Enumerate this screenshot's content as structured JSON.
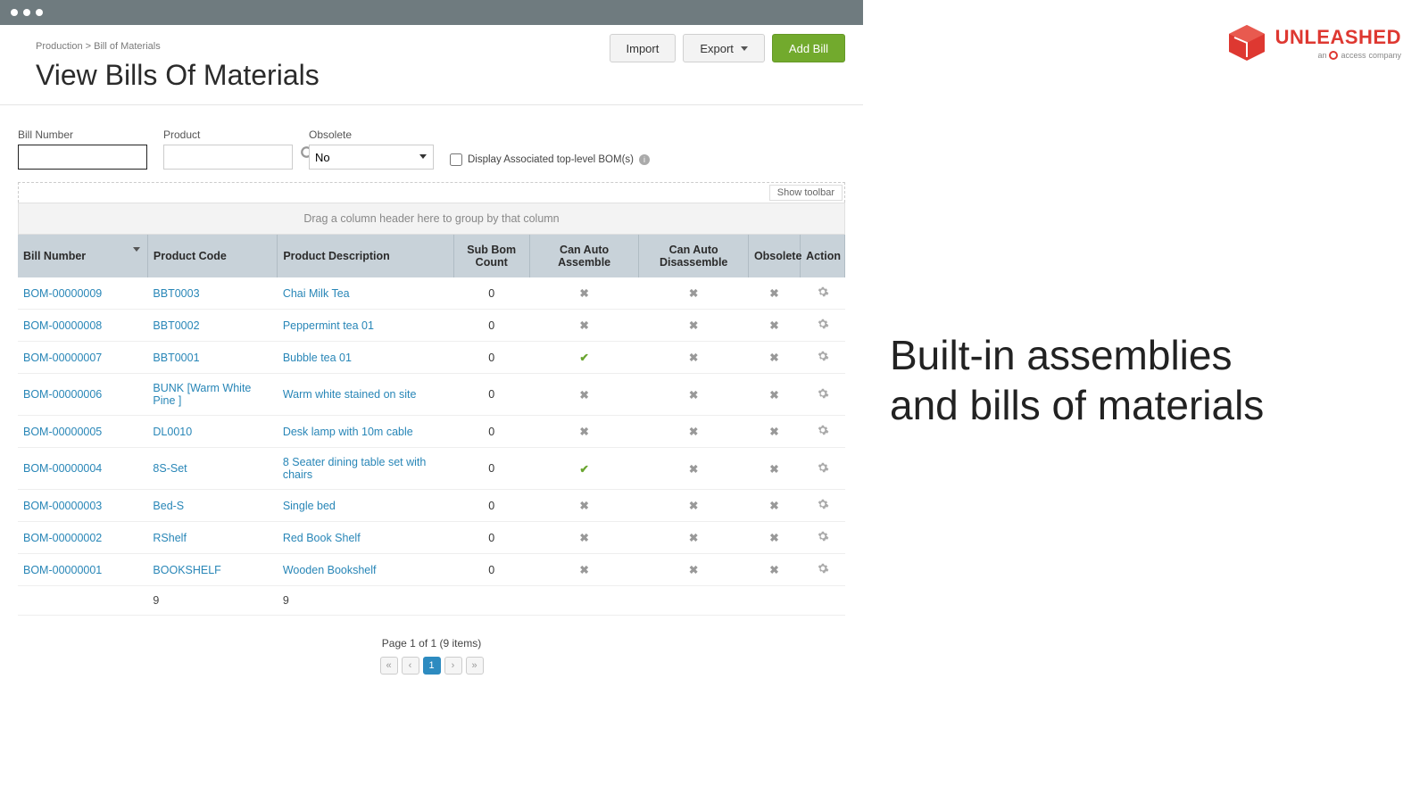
{
  "breadcrumb": "Production > Bill of Materials",
  "page_title": "View Bills Of Materials",
  "buttons": {
    "import": "Import",
    "export": "Export",
    "add": "Add Bill"
  },
  "filters": {
    "bill_number_label": "Bill Number",
    "product_label": "Product",
    "obsolete_label": "Obsolete",
    "obsolete_value": "No",
    "display_assoc_label": "Display Associated top-level BOM(s)"
  },
  "toolbar": {
    "show": "Show toolbar"
  },
  "group_hint": "Drag a column header here to group by that column",
  "columns": {
    "bill": "Bill Number",
    "code": "Product Code",
    "desc": "Product Description",
    "sub": "Sub Bom Count",
    "assemble": "Can Auto Assemble",
    "disassemble": "Can Auto Disassemble",
    "obsolete": "Obsolete",
    "action": "Action"
  },
  "col_widths": {
    "bill": 140,
    "code": 140,
    "desc": 190,
    "sub": 82,
    "assemble": 118,
    "disassemble": 118,
    "obsolete": 56,
    "action": 48
  },
  "rows": [
    {
      "bill": "BOM-00000009",
      "code": "BBT0003",
      "desc": "Chai Milk Tea",
      "sub": "0",
      "assemble": false,
      "disassemble": false,
      "obsolete": false
    },
    {
      "bill": "BOM-00000008",
      "code": "BBT0002",
      "desc": "Peppermint tea 01",
      "sub": "0",
      "assemble": false,
      "disassemble": false,
      "obsolete": false
    },
    {
      "bill": "BOM-00000007",
      "code": "BBT0001",
      "desc": "Bubble tea 01",
      "sub": "0",
      "assemble": true,
      "disassemble": false,
      "obsolete": false
    },
    {
      "bill": "BOM-00000006",
      "code": "BUNK [Warm White Pine ]",
      "desc": "Warm white stained on site",
      "sub": "0",
      "assemble": false,
      "disassemble": false,
      "obsolete": false
    },
    {
      "bill": "BOM-00000005",
      "code": "DL0010",
      "desc": "Desk lamp with 10m cable",
      "sub": "0",
      "assemble": false,
      "disassemble": false,
      "obsolete": false
    },
    {
      "bill": "BOM-00000004",
      "code": "8S-Set",
      "desc": "8 Seater dining table set with chairs",
      "sub": "0",
      "assemble": true,
      "disassemble": false,
      "obsolete": false
    },
    {
      "bill": "BOM-00000003",
      "code": "Bed-S",
      "desc": "Single bed",
      "sub": "0",
      "assemble": false,
      "disassemble": false,
      "obsolete": false
    },
    {
      "bill": "BOM-00000002",
      "code": "RShelf",
      "desc": "Red Book Shelf",
      "sub": "0",
      "assemble": false,
      "disassemble": false,
      "obsolete": false
    },
    {
      "bill": "BOM-00000001",
      "code": "BOOKSHELF",
      "desc": "Wooden Bookshelf",
      "sub": "0",
      "assemble": false,
      "disassemble": false,
      "obsolete": false
    }
  ],
  "footer": {
    "code_count": "9",
    "desc_count": "9"
  },
  "pagination": {
    "summary": "Page 1 of 1 (9 items)",
    "current": "1"
  },
  "promo": {
    "brand": "UNLEASHED",
    "subline_prefix": "an",
    "subline_brand": "access",
    "subline_suffix": "company",
    "headline_l1": "Built-in assemblies",
    "headline_l2": "and bills of materials"
  },
  "colors": {
    "brand_red": "#de3831",
    "button_green": "#72aa2d",
    "link_blue": "#2886b7",
    "header_bg": "#c8d2d9",
    "titlebar": "#6f7b7f"
  }
}
